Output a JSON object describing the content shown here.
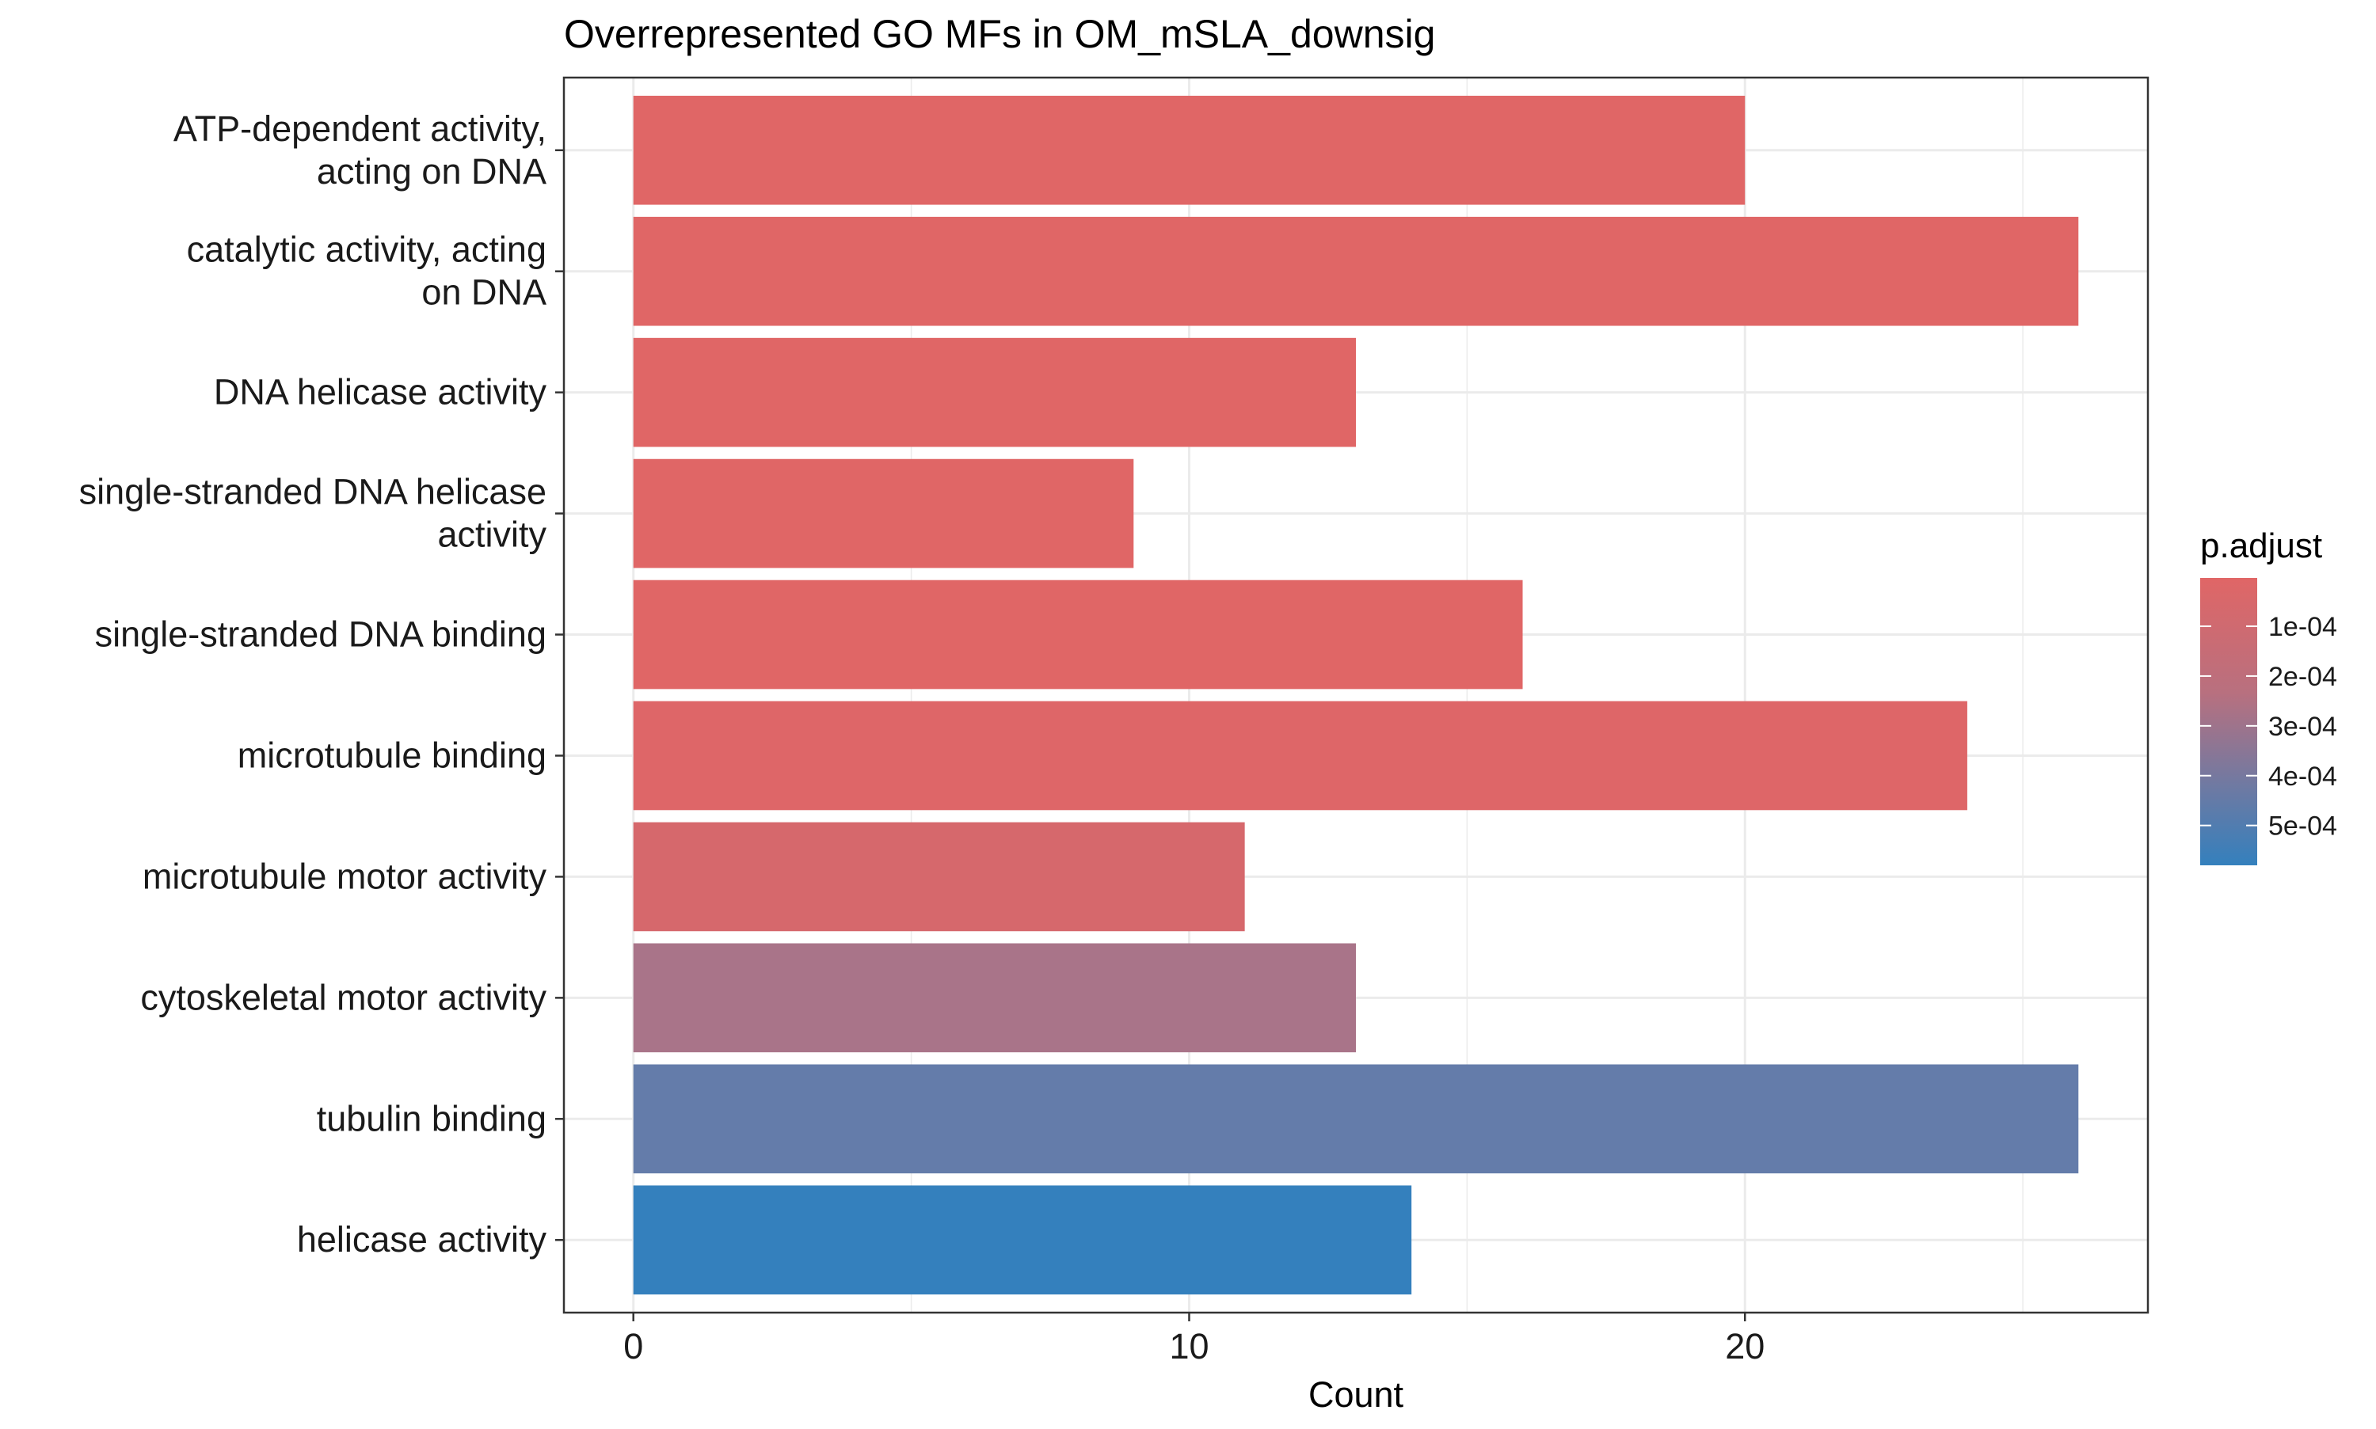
{
  "chart_data": {
    "type": "bar",
    "orientation": "horizontal",
    "title": "Overrepresented GO MFs in OM_mSLA_downsig",
    "xlabel": "Count",
    "ylabel": "",
    "xlim": [
      -1.25,
      27.25
    ],
    "x_ticks": [
      0,
      10,
      20
    ],
    "x_tick_labels": [
      "0",
      "10",
      "20"
    ],
    "x_minor_ticks": [
      5,
      15,
      25
    ],
    "grid": true,
    "categories": [
      "ATP-dependent activity, acting on DNA",
      "catalytic activity, acting on DNA",
      "DNA helicase activity",
      "single-stranded DNA helicase activity",
      "single-stranded DNA binding",
      "microtubule binding",
      "microtubule motor activity",
      "cytoskeletal motor activity",
      "tubulin binding",
      "helicase activity"
    ],
    "category_label_lines": [
      [
        "ATP-dependent activity,",
        "acting on DNA"
      ],
      [
        "catalytic activity, acting",
        "on DNA"
      ],
      [
        "DNA helicase activity"
      ],
      [
        "single-stranded DNA helicase",
        "activity"
      ],
      [
        "single-stranded DNA binding"
      ],
      [
        "microtubule binding"
      ],
      [
        "microtubule motor activity"
      ],
      [
        "cytoskeletal motor activity"
      ],
      [
        "tubulin binding"
      ],
      [
        "helicase activity"
      ]
    ],
    "values": [
      20,
      26,
      13,
      9,
      16,
      24,
      11,
      13,
      26,
      14
    ],
    "p_adjust": [
      3e-06,
      3e-06,
      4e-06,
      5e-06,
      6e-06,
      8e-06,
      2e-05,
      0.00025,
      0.00045,
      0.00058
    ],
    "bar_colors": [
      "#e06666",
      "#e06666",
      "#e06666",
      "#e06666",
      "#e06666",
      "#de6668",
      "#d6686c",
      "#a97489",
      "#647caa",
      "#3480bd"
    ],
    "legend": {
      "title": "p.adjust",
      "placement": "right",
      "type": "colorbar",
      "range": [
        3e-06,
        0.00058
      ],
      "color_low": "#e06666",
      "color_high": "#3480bd",
      "ticks": [
        0.0001,
        0.0002,
        0.0003,
        0.0004,
        0.0005
      ],
      "tick_labels": [
        "1e-04",
        "2e-04",
        "3e-04",
        "4e-04",
        "5e-04"
      ]
    }
  }
}
